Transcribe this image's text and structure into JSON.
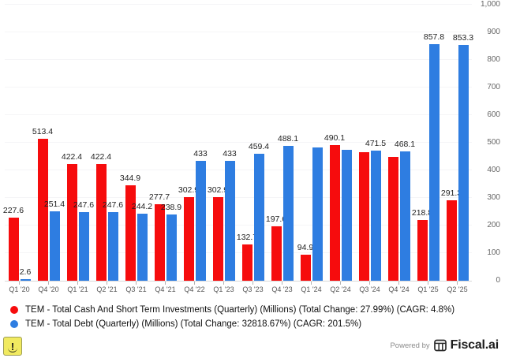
{
  "chart_data": {
    "type": "bar",
    "title": "",
    "categories": [
      "Q1 '20",
      "Q4 '20",
      "Q1 '21",
      "Q2 '21",
      "Q3 '21",
      "Q4 '21",
      "Q4 '22",
      "Q1 '23",
      "Q3 '23",
      "Q4 '23",
      "Q1 '24",
      "Q2 '24",
      "Q3 '24",
      "Q4 '24",
      "Q1 '25",
      "Q2 '25"
    ],
    "series": [
      {
        "key": "cash",
        "name": "TEM - Total Cash And Short Term Investments (Quarterly) (Millions) (Total Change: 27.99%) (CAGR: 4.8%)",
        "color": "#F60C0D",
        "values": [
          227.6,
          513.4,
          422.4,
          422.4,
          344.9,
          277.7,
          302.9,
          302.9,
          132.7,
          197.6,
          94.9,
          490.1,
          466,
          449,
          218.8,
          291.3
        ],
        "labels": [
          "227.6",
          "513.4",
          "422.4",
          "422.4",
          "344.9",
          "277.7",
          "302.9",
          "302.9",
          "132.7",
          "197.6",
          "94.9",
          "490.1",
          "",
          "",
          "218.8",
          "291.3"
        ]
      },
      {
        "key": "debt",
        "name": "TEM - Total Debt (Quarterly) (Millions) (Total Change: 32818.67%) (CAGR: 201.5%)",
        "color": "#2E7DE1",
        "values": [
          2.6,
          251.4,
          247.6,
          247.6,
          244.2,
          238.9,
          433,
          433,
          459.4,
          488.1,
          483,
          474,
          471.5,
          468.1,
          857.8,
          853.3
        ],
        "labels": [
          "2.6",
          "251.4",
          "247.6",
          "247.6",
          "244.2",
          "238.9",
          "433",
          "433",
          "459.4",
          "488.1",
          "",
          "",
          "471.5",
          "468.1",
          "857.8",
          "853.3"
        ]
      }
    ],
    "y_axis": {
      "position": "right",
      "min": 0,
      "max": 1000,
      "tick_values": [
        0,
        100,
        200,
        300,
        400,
        500,
        600,
        700,
        800,
        900,
        1000
      ],
      "tick_labels": [
        "0",
        "100",
        "200",
        "300",
        "400",
        "500",
        "600",
        "700",
        "800",
        "900",
        "1,000"
      ]
    },
    "legend_position": "bottom-left",
    "grid": "horizontal-faint"
  },
  "footer": {
    "powered_by": "Powered by",
    "brand": "Fiscal.ai"
  },
  "icons": {
    "warning_glyph": "!"
  }
}
